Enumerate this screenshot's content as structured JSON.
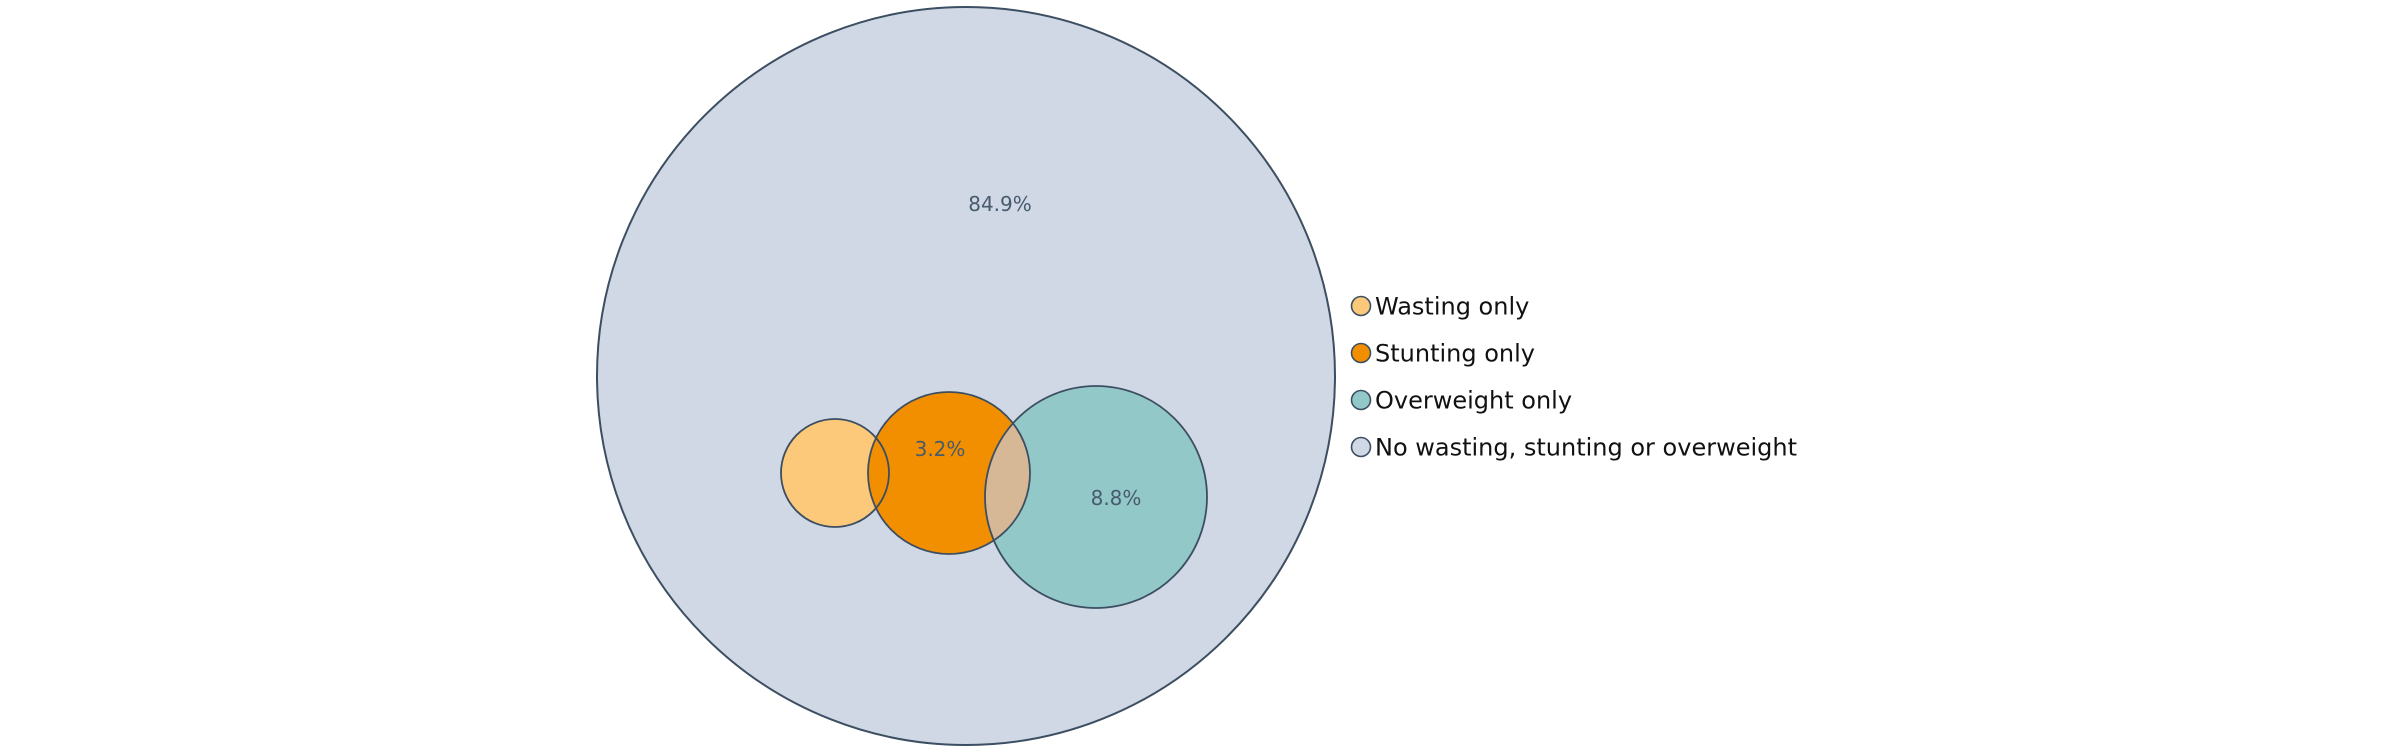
{
  "chart_data": {
    "type": "venn",
    "title": "",
    "sets": [
      {
        "key": "wasting",
        "name": "Wasting only",
        "color": "#fbc979"
      },
      {
        "key": "stunting",
        "name": "Stunting only",
        "color": "#f28f00"
      },
      {
        "key": "overweight",
        "name": "Overweight only",
        "color": "#93c8c9"
      },
      {
        "key": "none",
        "name": "No wasting, stunting or overweight",
        "color": "#cfd8e4"
      }
    ],
    "region_labels": [
      {
        "set": "none",
        "text": "84.9%",
        "value": 84.9
      },
      {
        "set": "stunting",
        "text": "3.2%",
        "value": 3.2
      },
      {
        "set": "overweight",
        "text": "8.8%",
        "value": 8.8
      },
      {
        "set": "wasting",
        "text": "",
        "value": null
      }
    ],
    "overlap_color": "#d6b896",
    "outline_color": "#3c4e62",
    "legend_position": "right"
  }
}
